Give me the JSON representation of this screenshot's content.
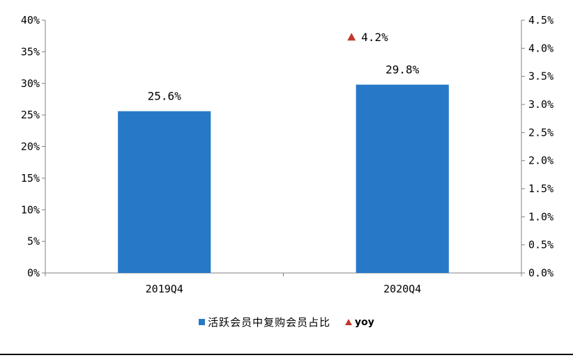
{
  "chart_data": {
    "type": "bar",
    "categories": [
      "2019Q4",
      "2020Q4"
    ],
    "series": [
      {
        "name": "活跃会员中复购会员占比",
        "axis": "left",
        "kind": "bar",
        "color": "#2878c8",
        "values": [
          25.6,
          29.8
        ],
        "labels": [
          "25.6%",
          "29.8%"
        ]
      },
      {
        "name": "yoy",
        "axis": "right",
        "kind": "marker-triangle",
        "color": "#c0392b",
        "values": [
          null,
          4.2
        ],
        "labels": [
          "",
          "4.2%"
        ]
      }
    ],
    "y_left": {
      "ylim": [
        0,
        40
      ],
      "ticks": [
        0,
        5,
        10,
        15,
        20,
        25,
        30,
        35,
        40
      ],
      "tick_labels": [
        "0%",
        "5%",
        "10%",
        "15%",
        "20%",
        "25%",
        "30%",
        "35%",
        "40%"
      ]
    },
    "y_right": {
      "ylim": [
        0,
        4.5
      ],
      "ticks": [
        0,
        0.5,
        1.0,
        1.5,
        2.0,
        2.5,
        3.0,
        3.5,
        4.0,
        4.5
      ],
      "tick_labels": [
        "0.0%",
        "0.5%",
        "1.0%",
        "1.5%",
        "2.0%",
        "2.5%",
        "3.0%",
        "3.5%",
        "4.0%",
        "4.5%"
      ]
    },
    "grid": false,
    "legend_position": "bottom"
  },
  "legend": {
    "bar_label": "活跃会员中复购会员占比",
    "marker_label": "yoy"
  }
}
